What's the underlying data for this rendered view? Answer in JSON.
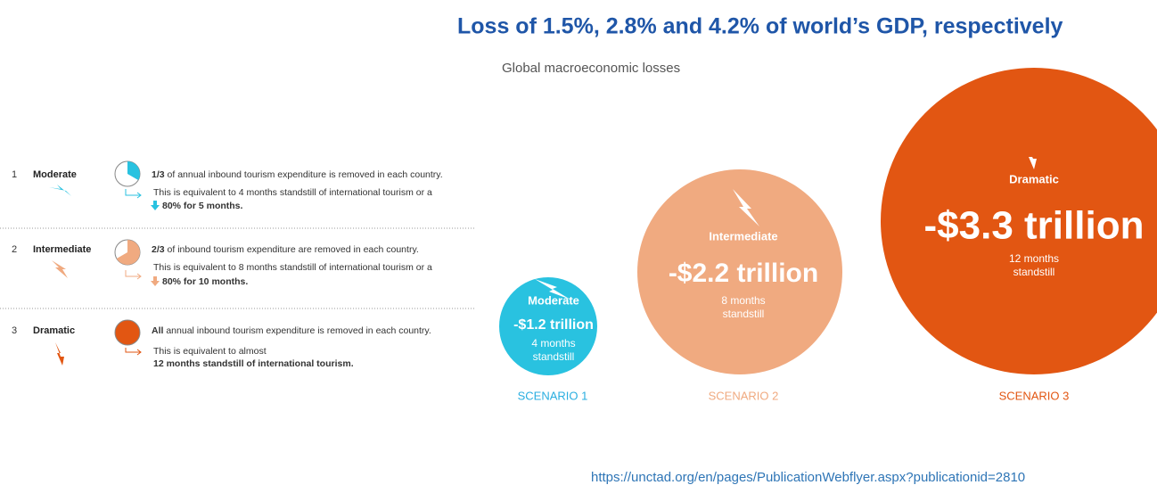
{
  "title": "Loss of 1.5%, 2.8% and 4.2% of world’s GDP, respectively",
  "subtitle": "Global macroeconomic losses",
  "scenarios": [
    {
      "number": "1",
      "name": "Moderate",
      "lead_bold": "1/3",
      "lead_text": " of annual inbound tourism expenditure is removed in each country.",
      "equivalent": "This is equivalent to 4 months standstill of international tourism or a",
      "detail": "80% for 5 months.",
      "circle_name": "Moderate",
      "amount": "-$1.2 trillion",
      "months": "4 months",
      "standstill": "standstill",
      "label": "SCENARIO 1"
    },
    {
      "number": "2",
      "name": "Intermediate",
      "lead_bold": "2/3",
      "lead_text": " of inbound tourism expenditure are removed in each country.",
      "equivalent": "This is equivalent to 8 months standstill of international tourism or a",
      "detail": "80% for 10 months.",
      "circle_name": "Intermediate",
      "amount": "-$2.2 trillion",
      "months": "8 months",
      "standstill": "standstill",
      "label": "SCENARIO 2"
    },
    {
      "number": "3",
      "name": "Dramatic",
      "lead_bold": "All",
      "lead_text": " annual inbound tourism expenditure is removed in each country.",
      "equivalent": "This is equivalent to almost",
      "detail": "12 months standstill of international tourism.",
      "circle_name": "Dramatic",
      "amount": "-$3.3 trillion",
      "months": "12 months",
      "standstill": "standstill",
      "label": "SCENARIO 3"
    }
  ],
  "source": "https://unctad.org/en/pages/PublicationWebflyer.aspx?publicationid=2810"
}
